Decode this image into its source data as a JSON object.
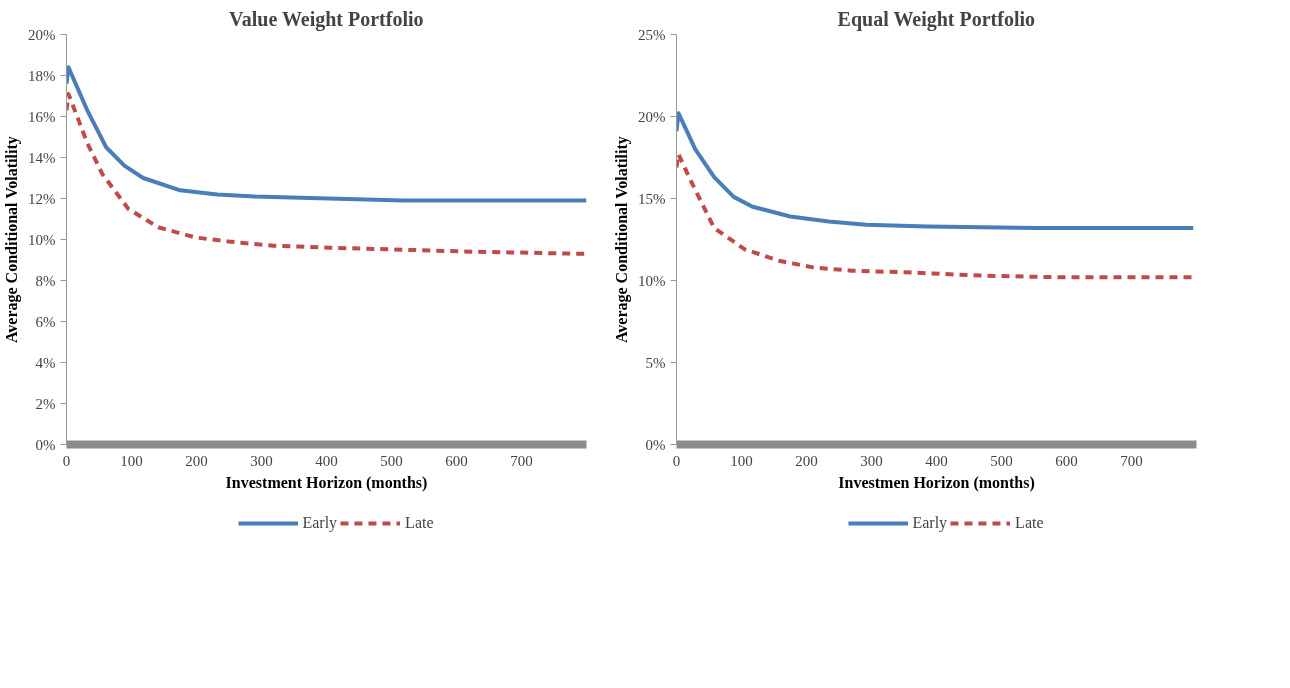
{
  "chart_data": [
    {
      "type": "line",
      "title": "Value Weight Portfolio",
      "xlabel": "Investment Horizon (months)",
      "ylabel": "Average Conditional Volatility",
      "xlim": [
        0,
        800
      ],
      "xticks": [
        0,
        100,
        200,
        300,
        400,
        500,
        600,
        700
      ],
      "ylim": [
        0,
        20
      ],
      "yticks": [
        {
          "value": 0,
          "label": "0%"
        },
        {
          "value": 2,
          "label": "2%"
        },
        {
          "value": 4,
          "label": "4%"
        },
        {
          "value": 6,
          "label": "6%"
        },
        {
          "value": 8,
          "label": "8%"
        },
        {
          "value": 10,
          "label": "10%"
        },
        {
          "value": 12,
          "label": "12%"
        },
        {
          "value": 14,
          "label": "14%"
        },
        {
          "value": 16,
          "label": "16%"
        },
        {
          "value": 18,
          "label": "18%"
        },
        {
          "value": 20,
          "label": "20%"
        }
      ],
      "grid": false,
      "legend": "bottom",
      "marker": "none",
      "series": [
        {
          "name": "Early",
          "color": "#4a7ebb",
          "line_style": "solid",
          "x": [
            0,
            3,
            32,
            61,
            89,
            118,
            175,
            232,
            289,
            403,
            518,
            800
          ],
          "values": [
            17.6,
            18.4,
            16.3,
            14.5,
            13.6,
            13.0,
            12.4,
            12.2,
            12.1,
            12.0,
            11.9,
            11.9
          ]
        },
        {
          "name": "Late",
          "color": "#be4b48",
          "line_style": "dashed",
          "x": [
            0,
            3,
            20,
            32,
            55,
            95,
            141,
            198,
            249,
            318,
            403,
            518,
            632,
            800
          ],
          "values": [
            16.3,
            17.1,
            15.7,
            14.7,
            13.2,
            11.5,
            10.6,
            10.1,
            9.9,
            9.7,
            9.6,
            9.5,
            9.4,
            9.3
          ]
        }
      ]
    },
    {
      "type": "line",
      "title": "Equal Weight Portfolio",
      "xlabel": "Investmen Horizon (months)",
      "ylabel": "Average Conditional Volatility",
      "xlim": [
        0,
        800
      ],
      "xticks": [
        0,
        100,
        200,
        300,
        400,
        500,
        600,
        700
      ],
      "ylim": [
        0,
        25
      ],
      "yticks": [
        {
          "value": 0,
          "label": "0%"
        },
        {
          "value": 5,
          "label": "5%"
        },
        {
          "value": 10,
          "label": "10%"
        },
        {
          "value": 15,
          "label": "15%"
        },
        {
          "value": 20,
          "label": "20%"
        },
        {
          "value": 25,
          "label": "25%"
        }
      ],
      "grid": false,
      "legend": "bottom",
      "marker": "none",
      "series": [
        {
          "name": "Early",
          "color": "#4a7ebb",
          "line_style": "solid",
          "x": [
            0,
            3,
            29,
            58,
            88,
            117,
            175,
            234,
            292,
            386,
            555,
            795
          ],
          "values": [
            19.1,
            20.2,
            18.0,
            16.3,
            15.1,
            14.5,
            13.9,
            13.6,
            13.4,
            13.3,
            13.2,
            13.2
          ]
        },
        {
          "name": "Late",
          "color": "#be4b48",
          "line_style": "dashed",
          "x": [
            0,
            3,
            23,
            58,
            105,
            158,
            210,
            269,
            351,
            468,
            585,
            795
          ],
          "values": [
            16.9,
            17.7,
            16.0,
            13.2,
            11.9,
            11.2,
            10.8,
            10.6,
            10.5,
            10.3,
            10.2,
            10.2
          ]
        }
      ]
    }
  ]
}
